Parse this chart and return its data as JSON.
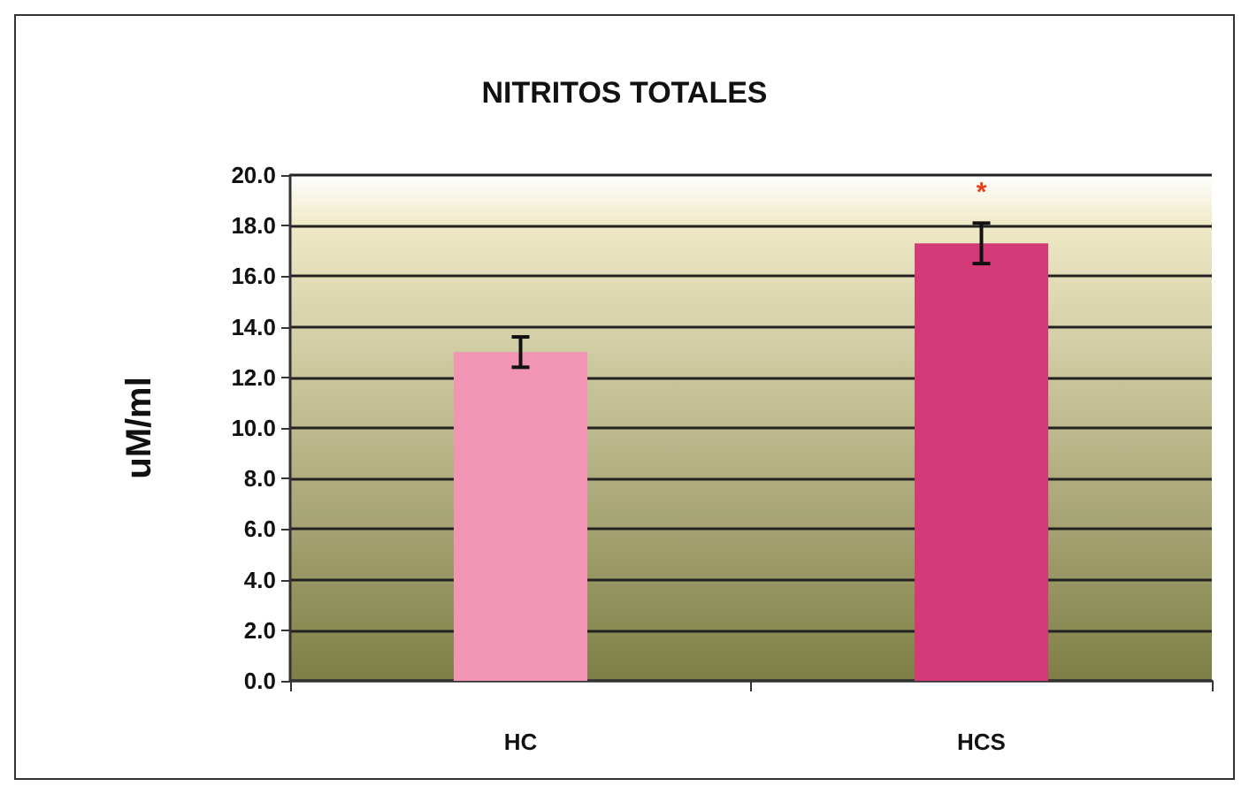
{
  "chart_data": {
    "type": "bar",
    "title": "NITRITOS TOTALES",
    "ylabel": "uM/ml",
    "categories": [
      "HC",
      "HCS"
    ],
    "values": [
      13.0,
      17.3
    ],
    "colors": [
      "#f295b4",
      "#d43a78"
    ],
    "errors": [
      0.6,
      0.8
    ],
    "ylim": [
      0,
      20
    ],
    "yticks": [
      {
        "value": 0,
        "label": "0.0"
      },
      {
        "value": 2,
        "label": "2.0"
      },
      {
        "value": 4,
        "label": "4.0"
      },
      {
        "value": 6,
        "label": "6.0"
      },
      {
        "value": 8,
        "label": "8.0"
      },
      {
        "value": 10,
        "label": "10.0"
      },
      {
        "value": 12,
        "label": "12.0"
      },
      {
        "value": 14,
        "label": "14.0"
      },
      {
        "value": 16,
        "label": "16.0"
      },
      {
        "value": 18,
        "label": "18.0"
      },
      {
        "value": 20,
        "label": "20.0"
      }
    ],
    "annotations": [
      "*"
    ],
    "grid": true
  }
}
